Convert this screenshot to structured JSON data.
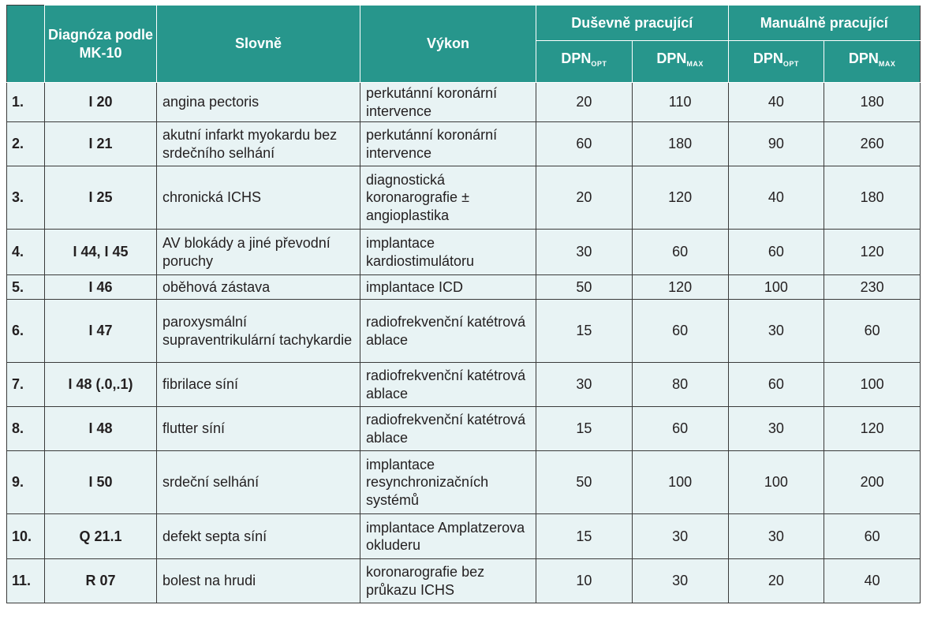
{
  "header": {
    "diagnosis_code": "Diagnóza podle MK-10",
    "verbal": "Slovně",
    "procedure": "Výkon",
    "mental_group": "Duševně pracující",
    "manual_group": "Manuálně pracující",
    "dpn_base": "DPN",
    "opt_sub": "OPT",
    "max_sub": "MAX"
  },
  "rows": [
    {
      "num": "1.",
      "code": "I 20",
      "name": "angina pectoris",
      "procedure": "perkutánní koronární intervence",
      "mental_opt": "20",
      "mental_max": "110",
      "manual_opt": "40",
      "manual_max": "180"
    },
    {
      "num": "2.",
      "code": "I 21",
      "name": "akutní infarkt myokardu bez srdečního selhání",
      "procedure": "perkutánní koronární intervence",
      "mental_opt": "60",
      "mental_max": "180",
      "manual_opt": "90",
      "manual_max": "260"
    },
    {
      "num": "3.",
      "code": "I 25",
      "name": "chronická ICHS",
      "procedure": "diagnostická koronarografie ± angioplastika",
      "mental_opt": "20",
      "mental_max": "120",
      "manual_opt": "40",
      "manual_max": "180"
    },
    {
      "num": "4.",
      "code": "I 44, I 45",
      "name": "AV blokády a jiné převodní poruchy",
      "procedure": "implantace kardiostimulátoru",
      "mental_opt": "30",
      "mental_max": "60",
      "manual_opt": "60",
      "manual_max": "120"
    },
    {
      "num": "5.",
      "code": "I 46",
      "name": "oběhová zástava",
      "procedure": "implantace ICD",
      "mental_opt": "50",
      "mental_max": "120",
      "manual_opt": "100",
      "manual_max": "230"
    },
    {
      "num": "6.",
      "code": "I 47",
      "name": "paroxysmální supraventrikulární tachykardie",
      "procedure": "radiofrekvenční katétrová ablace",
      "mental_opt": "15",
      "mental_max": "60",
      "manual_opt": "30",
      "manual_max": "60"
    },
    {
      "num": "7.",
      "code": "I 48 (.0,.1)",
      "name": "fibrilace síní",
      "procedure": "radiofrekvenční katétrová ablace",
      "mental_opt": "30",
      "mental_max": "80",
      "manual_opt": "60",
      "manual_max": "100"
    },
    {
      "num": "8.",
      "code": "I 48",
      "name": "flutter síní",
      "procedure": "radiofrekvenční katétrová ablace",
      "mental_opt": "15",
      "mental_max": "60",
      "manual_opt": "30",
      "manual_max": "120"
    },
    {
      "num": "9.",
      "code": "I 50",
      "name": "srdeční selhání",
      "procedure": "implantace resynchronizačních systémů",
      "mental_opt": "50",
      "mental_max": "100",
      "manual_opt": "100",
      "manual_max": "200"
    },
    {
      "num": "10.",
      "code": "Q 21.1",
      "name": "defekt septa síní",
      "procedure": "implantace Amplatzerova okluderu",
      "mental_opt": "15",
      "mental_max": "30",
      "manual_opt": "30",
      "manual_max": "60"
    },
    {
      "num": "11.",
      "code": "R 07",
      "name": "bolest na hrudi",
      "procedure": "koronarografie bez průkazu ICHS",
      "mental_opt": "10",
      "mental_max": "30",
      "manual_opt": "20",
      "manual_max": "40"
    }
  ]
}
